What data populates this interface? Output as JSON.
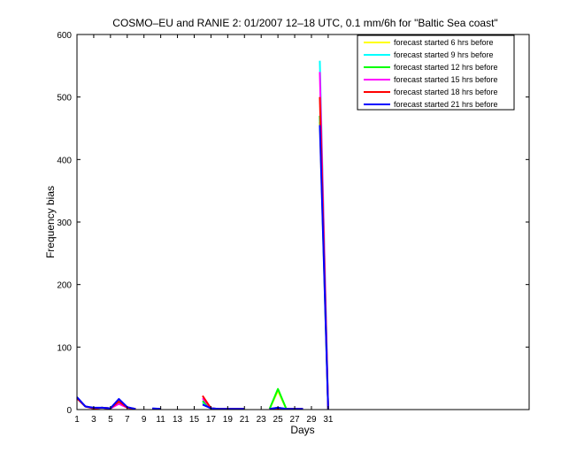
{
  "chart_data": {
    "type": "line",
    "title": "COSMO–EU and RANIE 2: 01/2007 12–18 UTC, 0.1 mm/6h for \"Baltic Sea coast\"",
    "xlabel": "Days",
    "ylabel": "Frequency bias",
    "xlim": [
      1,
      55
    ],
    "ylim": [
      0,
      600
    ],
    "xticks": [
      1,
      3,
      5,
      7,
      9,
      11,
      13,
      15,
      17,
      19,
      21,
      23,
      25,
      27,
      29,
      31
    ],
    "yticks": [
      0,
      100,
      200,
      300,
      400,
      500,
      600
    ],
    "grid": false,
    "legend_position": "top-right",
    "series": [
      {
        "name": "forecast started 6 hrs before",
        "color": "#ffff00",
        "segments": [
          [
            [
              1,
              18
            ],
            [
              2,
              5
            ],
            [
              3,
              2
            ],
            [
              4,
              3
            ],
            [
              5,
              2
            ],
            [
              6,
              12
            ],
            [
              7,
              3
            ],
            [
              8,
              1
            ]
          ],
          [
            [
              10,
              1
            ],
            [
              11,
              1
            ]
          ],
          [
            [
              16,
              10
            ],
            [
              17,
              2
            ],
            [
              18,
              1
            ],
            [
              19,
              1
            ],
            [
              20,
              1
            ],
            [
              21,
              1
            ]
          ],
          [
            [
              24,
              1
            ],
            [
              25,
              30
            ],
            [
              26,
              1
            ],
            [
              27,
              1
            ],
            [
              28,
              1
            ]
          ],
          [
            [
              30,
              460
            ],
            [
              31,
              0
            ]
          ]
        ]
      },
      {
        "name": "forecast started 9 hrs before",
        "color": "#00ffff",
        "segments": [
          [
            [
              1,
              18
            ],
            [
              2,
              5
            ],
            [
              3,
              2
            ],
            [
              4,
              3
            ],
            [
              5,
              2
            ],
            [
              6,
              14
            ],
            [
              7,
              3
            ],
            [
              8,
              1
            ]
          ],
          [
            [
              10,
              1
            ],
            [
              11,
              1
            ]
          ],
          [
            [
              16,
              12
            ],
            [
              17,
              2
            ],
            [
              18,
              1
            ],
            [
              19,
              1
            ],
            [
              20,
              1
            ],
            [
              21,
              1
            ]
          ],
          [
            [
              24,
              1
            ],
            [
              25,
              3
            ],
            [
              26,
              1
            ],
            [
              27,
              1
            ],
            [
              28,
              1
            ]
          ],
          [
            [
              30,
              558
            ],
            [
              31,
              0
            ]
          ]
        ]
      },
      {
        "name": "forecast started 12 hrs before",
        "color": "#00ff00",
        "segments": [
          [
            [
              1,
              18
            ],
            [
              2,
              5
            ],
            [
              3,
              2
            ],
            [
              4,
              3
            ],
            [
              5,
              2
            ],
            [
              6,
              10
            ],
            [
              7,
              3
            ],
            [
              8,
              1
            ]
          ],
          [
            [
              10,
              1
            ],
            [
              11,
              1
            ]
          ],
          [
            [
              16,
              14
            ],
            [
              17,
              2
            ],
            [
              18,
              1
            ],
            [
              19,
              1
            ],
            [
              20,
              1
            ],
            [
              21,
              1
            ]
          ],
          [
            [
              24,
              1
            ],
            [
              25,
              33
            ],
            [
              26,
              1
            ],
            [
              27,
              1
            ],
            [
              28,
              1
            ]
          ],
          [
            [
              30,
              470
            ],
            [
              31,
              0
            ]
          ]
        ]
      },
      {
        "name": "forecast started 15 hrs before",
        "color": "#ff00ff",
        "segments": [
          [
            [
              1,
              18
            ],
            [
              2,
              5
            ],
            [
              3,
              2
            ],
            [
              4,
              3
            ],
            [
              5,
              2
            ],
            [
              6,
              9
            ],
            [
              7,
              3
            ],
            [
              8,
              1
            ]
          ],
          [
            [
              10,
              1
            ],
            [
              11,
              1
            ]
          ],
          [
            [
              16,
              18
            ],
            [
              17,
              2
            ],
            [
              18,
              1
            ],
            [
              19,
              1
            ],
            [
              20,
              1
            ],
            [
              21,
              1
            ]
          ],
          [
            [
              24,
              1
            ],
            [
              25,
              2
            ],
            [
              26,
              1
            ],
            [
              27,
              1
            ],
            [
              28,
              1
            ]
          ],
          [
            [
              30,
              540
            ],
            [
              31,
              0
            ]
          ]
        ]
      },
      {
        "name": "forecast started 18 hrs before",
        "color": "#ff0000",
        "segments": [
          [
            [
              1,
              18
            ],
            [
              2,
              5
            ],
            [
              3,
              2
            ],
            [
              4,
              3
            ],
            [
              5,
              2
            ],
            [
              6,
              13
            ],
            [
              7,
              3
            ],
            [
              8,
              1
            ]
          ],
          [
            [
              10,
              1
            ],
            [
              11,
              1
            ]
          ],
          [
            [
              16,
              22
            ],
            [
              17,
              2
            ],
            [
              18,
              1
            ],
            [
              19,
              1
            ],
            [
              20,
              1
            ],
            [
              21,
              1
            ]
          ],
          [
            [
              24,
              1
            ],
            [
              25,
              2
            ],
            [
              26,
              1
            ],
            [
              27,
              1
            ],
            [
              28,
              1
            ]
          ],
          [
            [
              30,
              500
            ],
            [
              31,
              0
            ]
          ]
        ]
      },
      {
        "name": "forecast started 21 hrs before",
        "color": "#0000ff",
        "segments": [
          [
            [
              1,
              20
            ],
            [
              2,
              5
            ],
            [
              3,
              3
            ],
            [
              4,
              3
            ],
            [
              5,
              2
            ],
            [
              6,
              17
            ],
            [
              7,
              4
            ],
            [
              8,
              1
            ]
          ],
          [
            [
              10,
              2
            ],
            [
              11,
              1
            ]
          ],
          [
            [
              16,
              8
            ],
            [
              17,
              2
            ],
            [
              18,
              1
            ],
            [
              19,
              1
            ],
            [
              20,
              1
            ],
            [
              21,
              1
            ]
          ],
          [
            [
              24,
              1
            ],
            [
              25,
              3
            ],
            [
              26,
              1
            ],
            [
              27,
              1
            ],
            [
              28,
              1
            ]
          ],
          [
            [
              30,
              455
            ],
            [
              31,
              0
            ]
          ]
        ]
      }
    ]
  }
}
